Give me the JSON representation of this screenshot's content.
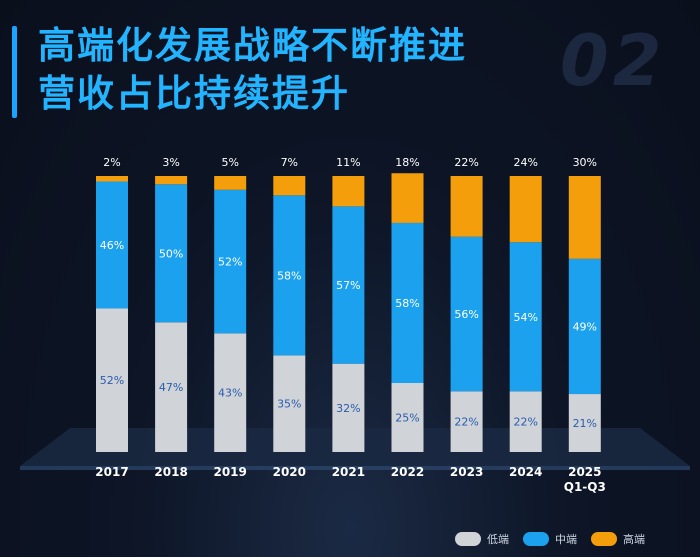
{
  "title": {
    "line1": "高端化发展战略不断推进",
    "line2": "营收占比持续提升"
  },
  "watermark": "02",
  "colors": {
    "low": "#d0d3d8",
    "mid": "#1ba1ee",
    "high": "#f59e0b",
    "accent": "#22b4ff"
  },
  "chart_data": {
    "type": "bar",
    "stacked": true,
    "title": "高端化发展战略不断推进 营收占比持续提升",
    "categories": [
      "2017",
      "2018",
      "2019",
      "2020",
      "2021",
      "2022",
      "2023",
      "2024",
      "2025\nQ1-Q3"
    ],
    "series": [
      {
        "name": "低端",
        "values": [
          52,
          47,
          43,
          35,
          32,
          25,
          22,
          22,
          21
        ],
        "color": "#d0d3d8"
      },
      {
        "name": "中端",
        "values": [
          46,
          50,
          52,
          58,
          57,
          58,
          56,
          54,
          49
        ],
        "color": "#1ba1ee"
      },
      {
        "name": "高端",
        "values": [
          2,
          3,
          5,
          7,
          11,
          18,
          22,
          24,
          30
        ],
        "color": "#f59e0b"
      }
    ],
    "value_suffix": "%",
    "ylim": [
      0,
      100
    ],
    "legend_position": "bottom-right"
  },
  "legend": [
    {
      "label": "低端",
      "color": "#d0d3d8"
    },
    {
      "label": "中端",
      "color": "#1ba1ee"
    },
    {
      "label": "高端",
      "color": "#f59e0b"
    }
  ]
}
